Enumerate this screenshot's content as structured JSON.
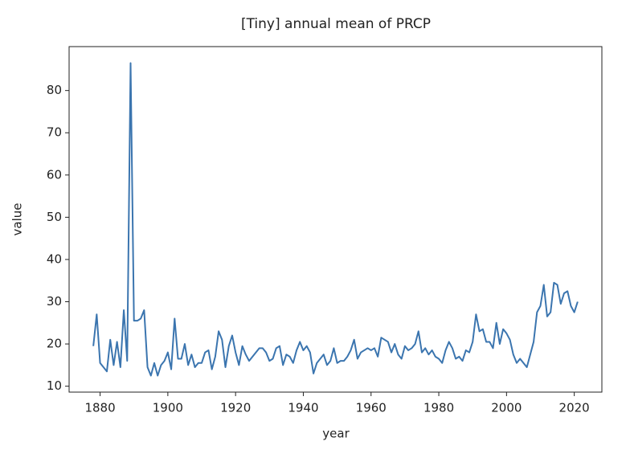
{
  "chart_data": {
    "type": "line",
    "title": "[Tiny] annual mean of PRCP",
    "x_label": "year",
    "y_label": "value",
    "x": [
      1878,
      1879,
      1880,
      1881,
      1882,
      1883,
      1884,
      1885,
      1886,
      1887,
      1888,
      1889,
      1890,
      1891,
      1892,
      1893,
      1894,
      1895,
      1896,
      1897,
      1898,
      1899,
      1900,
      1901,
      1902,
      1903,
      1904,
      1905,
      1906,
      1907,
      1908,
      1909,
      1910,
      1911,
      1912,
      1913,
      1914,
      1915,
      1916,
      1917,
      1918,
      1919,
      1920,
      1921,
      1922,
      1923,
      1924,
      1925,
      1926,
      1927,
      1928,
      1929,
      1930,
      1931,
      1932,
      1933,
      1934,
      1935,
      1936,
      1937,
      1938,
      1939,
      1940,
      1941,
      1942,
      1943,
      1944,
      1945,
      1946,
      1947,
      1948,
      1949,
      1950,
      1951,
      1952,
      1953,
      1954,
      1955,
      1956,
      1957,
      1958,
      1959,
      1960,
      1961,
      1962,
      1963,
      1964,
      1965,
      1966,
      1967,
      1968,
      1969,
      1970,
      1971,
      1972,
      1973,
      1974,
      1975,
      1976,
      1977,
      1978,
      1979,
      1980,
      1981,
      1982,
      1983,
      1984,
      1985,
      1986,
      1987,
      1988,
      1989,
      1990,
      1991,
      1992,
      1993,
      1994,
      1995,
      1996,
      1997,
      1998,
      1999,
      2000,
      2001,
      2002,
      2003,
      2004,
      2005,
      2006,
      2007,
      2008,
      2009,
      2010,
      2011,
      2012,
      2013,
      2014,
      2015,
      2016,
      2017,
      2018,
      2019,
      2020,
      2021
    ],
    "series": [
      {
        "color": "#3b75af",
        "values": [
          19.5,
          27,
          15.5,
          14.5,
          13.5,
          21,
          15,
          20.5,
          14.5,
          28,
          16,
          86.5,
          25.5,
          25.5,
          26,
          28,
          14.5,
          12.5,
          15.5,
          12.5,
          15,
          16,
          18,
          14,
          26,
          16.5,
          16.5,
          20,
          15,
          17.5,
          14.5,
          15.5,
          15.5,
          18,
          18.5,
          14,
          17,
          23,
          21,
          14.5,
          19.5,
          22,
          18,
          15,
          19.5,
          17.5,
          16,
          17,
          18,
          19,
          19,
          18,
          16,
          16.5,
          19,
          19.5,
          15,
          17.5,
          17,
          15.5,
          18.5,
          20.5,
          18.5,
          19.5,
          18,
          13,
          15.5,
          16.5,
          17.5,
          15,
          16,
          19,
          15.5,
          16,
          16,
          17,
          18.5,
          21,
          16.5,
          18,
          18.5,
          19,
          18.5,
          19,
          17,
          21.5,
          21,
          20.5,
          18,
          20,
          17.5,
          16.5,
          19.5,
          18.5,
          19,
          20,
          23,
          18,
          19,
          17.5,
          18.5,
          17,
          16.5,
          15.5,
          18.5,
          20.5,
          19,
          16.5,
          17,
          16,
          18.5,
          18,
          20.5,
          27,
          23,
          23.5,
          20.5,
          20.5,
          19,
          25,
          20,
          23.5,
          22.5,
          21,
          17.5,
          15.5,
          16.5,
          15.5,
          14.5,
          17.5,
          20.5,
          27.5,
          29,
          34,
          26.5,
          27.5,
          34.5,
          34,
          29.5,
          32,
          32.5,
          29,
          27.5,
          30
        ]
      }
    ],
    "xlim": [
      1870.85,
      2028.15
    ],
    "xticks": [
      1880,
      1900,
      1920,
      1940,
      1960,
      1980,
      2000,
      2020
    ],
    "ylim": [
      8.6,
      90.4
    ],
    "yticks": [
      10,
      20,
      30,
      40,
      50,
      60,
      70,
      80
    ],
    "grid": false
  }
}
